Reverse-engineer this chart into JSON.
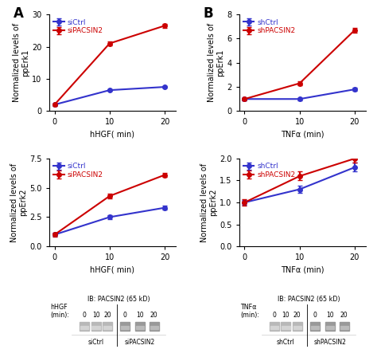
{
  "panel_A_top": {
    "x": [
      0,
      10,
      20
    ],
    "blue_y": [
      2.0,
      6.5,
      7.5
    ],
    "red_y": [
      2.0,
      21.0,
      26.5
    ],
    "blue_err": [
      0.2,
      0.3,
      0.3
    ],
    "red_err": [
      0.3,
      0.5,
      0.6
    ],
    "ylabel": "Normalized levels of\nppErk1",
    "xlabel": "hHGF( min)",
    "ylim": [
      0,
      30
    ],
    "yticks": [
      0,
      10,
      20,
      30
    ],
    "xticks": [
      0,
      10,
      20
    ],
    "blue_label": "siCtrl",
    "red_label": "siPACSIN2"
  },
  "panel_A_bot": {
    "x": [
      0,
      10,
      20
    ],
    "blue_y": [
      1.0,
      2.5,
      3.3
    ],
    "red_y": [
      1.0,
      4.3,
      6.1
    ],
    "blue_err": [
      0.1,
      0.15,
      0.15
    ],
    "red_err": [
      0.15,
      0.2,
      0.2
    ],
    "ylabel": "Normalized levels of\nppErk2",
    "xlabel": "hHGF( min)",
    "ylim": [
      0,
      7.5
    ],
    "yticks": [
      0,
      2.5,
      5.0,
      7.5
    ],
    "xticks": [
      0,
      10,
      20
    ],
    "blue_label": "siCtrl",
    "red_label": "siPACSIN2"
  },
  "panel_B_top": {
    "x": [
      0,
      10,
      20
    ],
    "blue_y": [
      1.0,
      1.0,
      1.8
    ],
    "red_y": [
      1.0,
      2.3,
      6.7
    ],
    "blue_err": [
      0.1,
      0.1,
      0.15
    ],
    "red_err": [
      0.1,
      0.15,
      0.2
    ],
    "ylabel": "Normalized levels of\nppErk1",
    "xlabel": "TNFα (min)",
    "ylim": [
      0,
      8
    ],
    "yticks": [
      0,
      2,
      4,
      6,
      8
    ],
    "xticks": [
      0,
      10,
      20
    ],
    "blue_label": "shCtrl",
    "red_label": "shPACSIN2"
  },
  "panel_B_bot": {
    "x": [
      0,
      10,
      20
    ],
    "blue_y": [
      1.0,
      1.3,
      1.8
    ],
    "red_y": [
      1.0,
      1.6,
      2.0
    ],
    "blue_err": [
      0.05,
      0.08,
      0.1
    ],
    "red_err": [
      0.08,
      0.1,
      0.1
    ],
    "ylabel": "Normalized levels of\nppErk2",
    "xlabel": "TNFα (min)",
    "ylim": [
      0,
      2.0
    ],
    "yticks": [
      0,
      0.5,
      1.0,
      1.5,
      2.0
    ],
    "xticks": [
      0,
      10,
      20
    ],
    "blue_label": "shCtrl",
    "red_label": "shPACSIN2"
  },
  "blue_color": "#3333cc",
  "red_color": "#cc0000",
  "bg_color": "#ffffff",
  "linewidth": 1.5,
  "markersize": 4,
  "fontsize_label": 7,
  "fontsize_legend": 6.5,
  "fontsize_title": 12,
  "ib_text_A": "IB: PACSIN2 (65 kD)",
  "ib_text_B": "IB: PACSIN2 (65 kD)",
  "hhgf_label": "hHGF",
  "tnfa_label": "TNFα",
  "min_label": "(min):",
  "sictrl_label": "siCtrl",
  "sipacsin2_label": "siPACSIN2",
  "shctrl_label": "shCtrl",
  "shpacsin2_label": "shPACSIN2"
}
